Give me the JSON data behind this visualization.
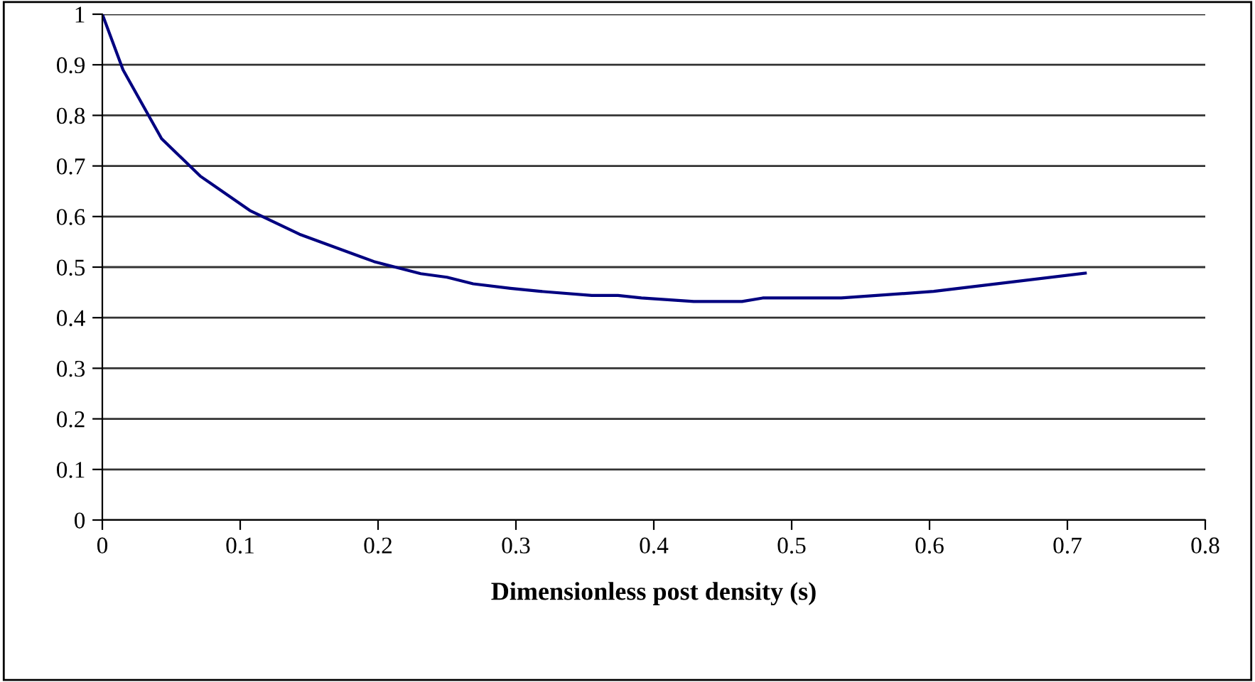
{
  "chart_data": {
    "type": "line",
    "xlabel": "Dimensionless post density (s)",
    "series": [
      {
        "color": "#000080",
        "x": [
          0,
          0.015,
          0.043,
          0.071,
          0.107,
          0.143,
          0.197,
          0.231,
          0.25,
          0.269,
          0.296,
          0.318,
          0.355,
          0.374,
          0.391,
          0.429,
          0.464,
          0.479,
          0.5,
          0.536,
          0.603,
          0.713
        ],
        "values": [
          1,
          0.89,
          0.754,
          0.68,
          0.612,
          0.565,
          0.511,
          0.487,
          0.48,
          0.467,
          0.458,
          0.452,
          0.444,
          0.444,
          0.439,
          0.432,
          0.432,
          0.439,
          0.439,
          0.439,
          0.452,
          0.488
        ]
      }
    ],
    "xlim": [
      0,
      0.8
    ],
    "ylim": [
      0,
      1
    ],
    "xticks": [
      0,
      0.1,
      0.2,
      0.3,
      0.4,
      0.5,
      0.6,
      0.7,
      0.8
    ],
    "yticks": [
      0,
      0.1,
      0.2,
      0.3,
      0.4,
      0.5,
      0.6,
      0.7,
      0.8,
      0.9,
      1
    ],
    "grid": "y",
    "legend": false,
    "marker": "none",
    "line_style": "solid"
  }
}
